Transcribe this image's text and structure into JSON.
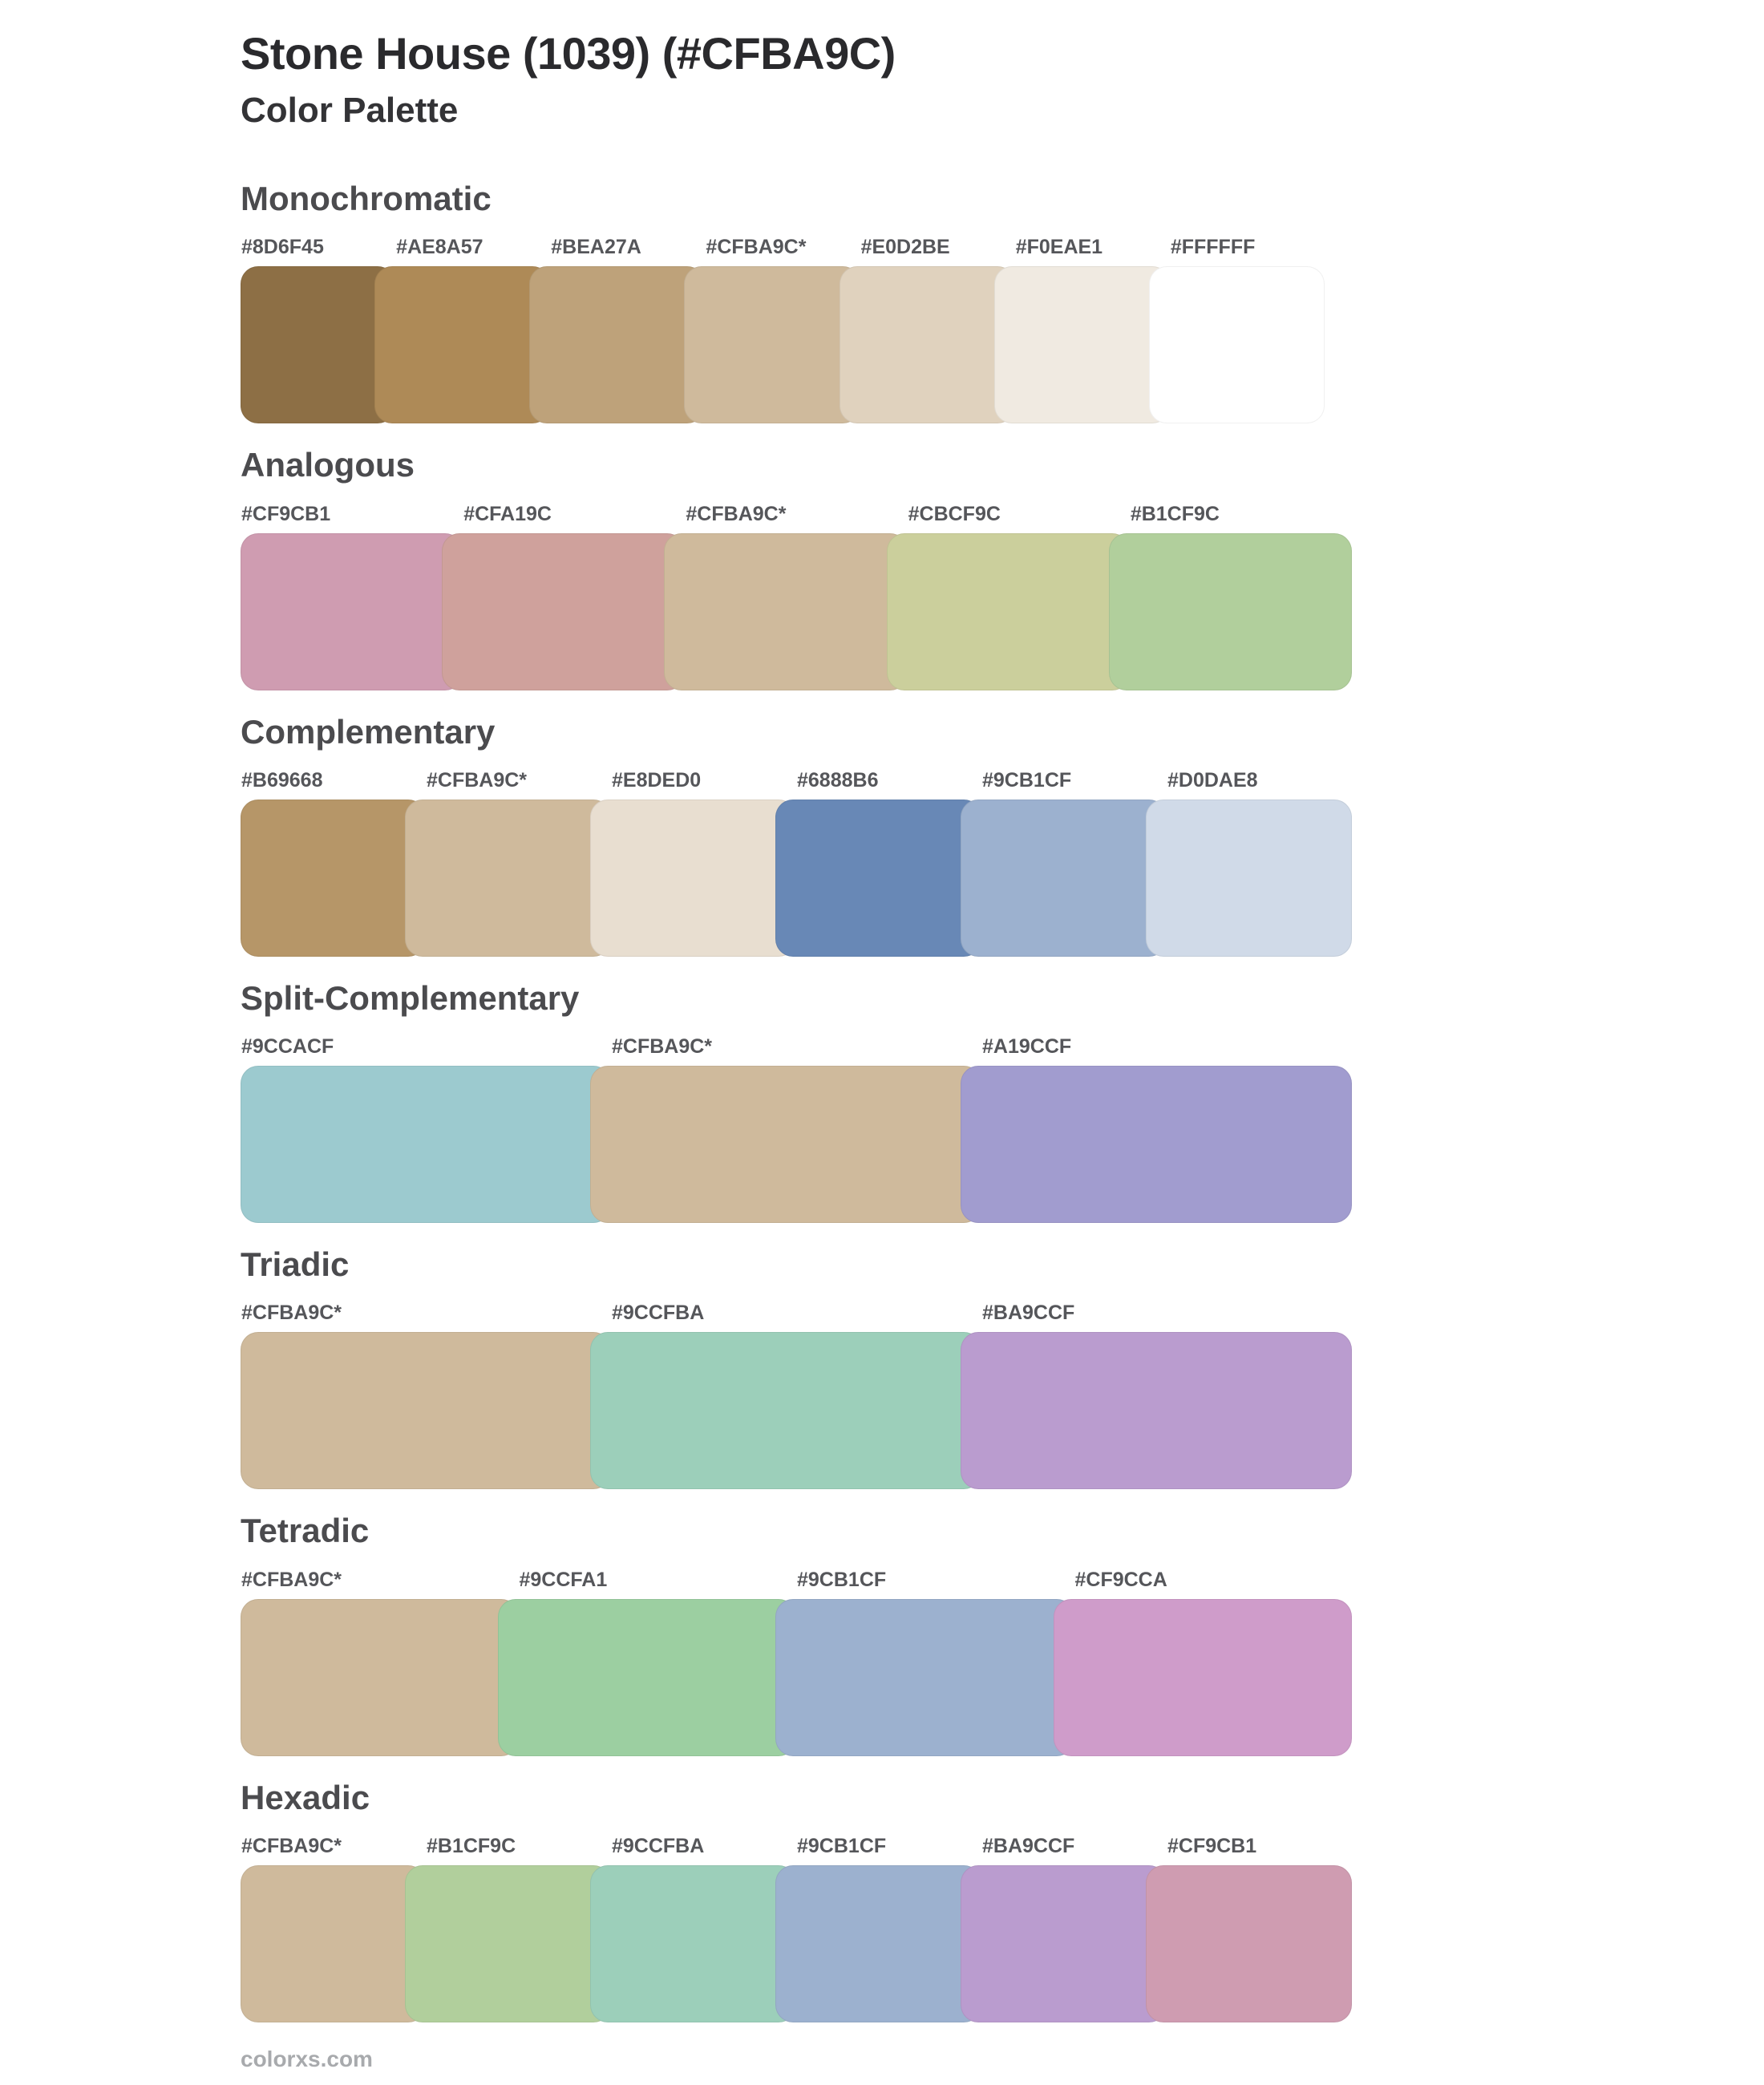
{
  "page": {
    "title": "Stone House (1039) (#CFBA9C)",
    "subtitle": "Color Palette",
    "footer": "colorxs.com"
  },
  "sections": [
    {
      "name": "Monochromatic",
      "swatches": [
        {
          "label": "#8D6F45",
          "hex": "#8D6F45"
        },
        {
          "label": "#AE8A57",
          "hex": "#AE8A57"
        },
        {
          "label": "#BEA27A",
          "hex": "#BEA27A"
        },
        {
          "label": "#CFBA9C*",
          "hex": "#CFBA9C"
        },
        {
          "label": "#E0D2BE",
          "hex": "#E0D2BE"
        },
        {
          "label": "#F0EAE1",
          "hex": "#F0EAE1"
        },
        {
          "label": "#FFFFFF",
          "hex": "#FFFFFF"
        }
      ]
    },
    {
      "name": "Analogous",
      "swatches": [
        {
          "label": "#CF9CB1",
          "hex": "#CF9CB1"
        },
        {
          "label": "#CFA19C",
          "hex": "#CFA19C"
        },
        {
          "label": "#CFBA9C*",
          "hex": "#CFBA9C"
        },
        {
          "label": "#CBCF9C",
          "hex": "#CBCF9C"
        },
        {
          "label": "#B1CF9C",
          "hex": "#B1CF9C"
        }
      ]
    },
    {
      "name": "Complementary",
      "swatches": [
        {
          "label": "#B69668",
          "hex": "#B69668"
        },
        {
          "label": "#CFBA9C*",
          "hex": "#CFBA9C"
        },
        {
          "label": "#E8DED0",
          "hex": "#E8DED0"
        },
        {
          "label": "#6888B6",
          "hex": "#6888B6"
        },
        {
          "label": "#9CB1CF",
          "hex": "#9CB1CF"
        },
        {
          "label": "#D0DAE8",
          "hex": "#D0DAE8"
        }
      ]
    },
    {
      "name": "Split-Complementary",
      "swatches": [
        {
          "label": "#9CCACF",
          "hex": "#9CCACF"
        },
        {
          "label": "#CFBA9C*",
          "hex": "#CFBA9C"
        },
        {
          "label": "#A19CCF",
          "hex": "#A19CCF"
        }
      ]
    },
    {
      "name": "Triadic",
      "swatches": [
        {
          "label": "#CFBA9C*",
          "hex": "#CFBA9C"
        },
        {
          "label": "#9CCFBA",
          "hex": "#9CCFBA"
        },
        {
          "label": "#BA9CCF",
          "hex": "#BA9CCF"
        }
      ]
    },
    {
      "name": "Tetradic",
      "swatches": [
        {
          "label": "#CFBA9C*",
          "hex": "#CFBA9C"
        },
        {
          "label": "#9CCFA1",
          "hex": "#9CCFA1"
        },
        {
          "label": "#9CB1CF",
          "hex": "#9CB1CF"
        },
        {
          "label": "#CF9CCA",
          "hex": "#CF9CCA"
        }
      ]
    },
    {
      "name": "Hexadic",
      "swatches": [
        {
          "label": "#CFBA9C*",
          "hex": "#CFBA9C"
        },
        {
          "label": "#B1CF9C",
          "hex": "#B1CF9C"
        },
        {
          "label": "#9CCFBA",
          "hex": "#9CCFBA"
        },
        {
          "label": "#9CB1CF",
          "hex": "#9CB1CF"
        },
        {
          "label": "#BA9CCF",
          "hex": "#BA9CCF"
        },
        {
          "label": "#CF9CB1",
          "hex": "#CF9CB1"
        }
      ]
    }
  ]
}
